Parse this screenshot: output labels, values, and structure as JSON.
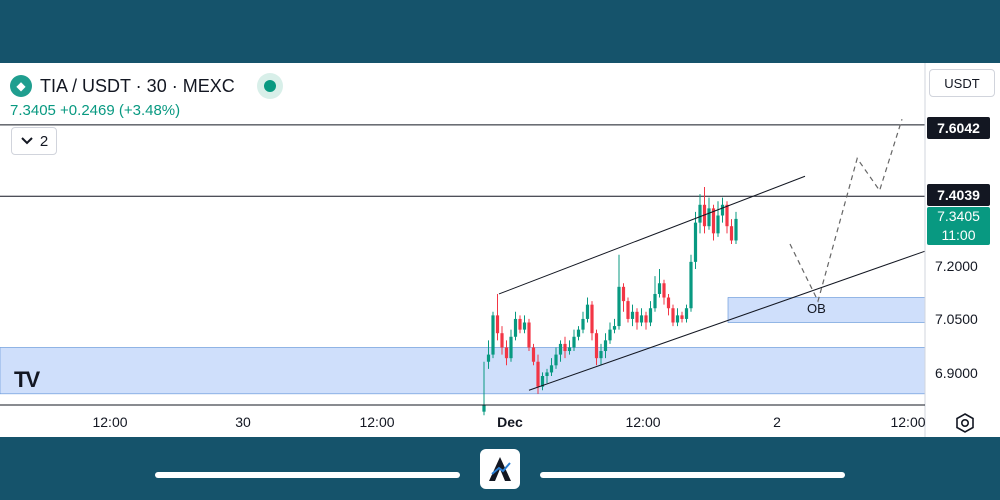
{
  "header": {
    "symbol_title": "TIA / USDT · 30 · MEXC",
    "price_change": "7.3405 +0.2469 (+3.48%)",
    "indicator_count": "2"
  },
  "currency_button": "USDT",
  "watermark": "TV",
  "annotation_label": "OB",
  "colors": {
    "up": "#089981",
    "down": "#f23645",
    "zone": "#cfdffb",
    "frame": "#15536b"
  },
  "price_tags": {
    "upper": "7.6042",
    "middle": "7.4039",
    "current_price": "7.3405",
    "countdown": "11:00"
  },
  "chart_data": {
    "type": "candlestick",
    "y_ticks": [
      7.2,
      7.05,
      6.9
    ],
    "y_tick_labels": [
      "7.2000",
      "7.0500",
      "6.9000"
    ],
    "x_tick_labels": [
      "12:00",
      "30",
      "12:00",
      "Dec",
      "12:00",
      "2",
      "12:00"
    ],
    "horizontal_levels": [
      7.6042,
      7.4039
    ],
    "current_price": 7.3405,
    "zones": [
      {
        "name": "lower-demand-zone",
        "from": 6.85,
        "to": 6.98
      },
      {
        "name": "OB",
        "from": 7.05,
        "to": 7.12
      }
    ],
    "channel": {
      "upper": [
        [
          0,
          7.13
        ],
        [
          47,
          7.46
        ]
      ],
      "lower": [
        [
          10,
          6.86
        ],
        [
          68,
          7.25
        ]
      ]
    },
    "projection": [
      [
        47,
        7.27
      ],
      [
        52,
        7.11
      ],
      [
        59,
        7.51
      ],
      [
        63,
        7.42
      ],
      [
        67,
        7.62
      ]
    ],
    "candles": [
      [
        6.8,
        6.82,
        6.79,
        6.94
      ],
      [
        6.94,
        6.96,
        6.92,
        7.0
      ],
      [
        6.96,
        7.07,
        6.95,
        7.08
      ],
      [
        7.07,
        7.02,
        7.0,
        7.13
      ],
      [
        7.02,
        6.98,
        6.96,
        7.04
      ],
      [
        6.98,
        6.95,
        6.93,
        7.0
      ],
      [
        6.95,
        7.01,
        6.94,
        7.03
      ],
      [
        7.01,
        7.06,
        7.0,
        7.08
      ],
      [
        7.06,
        7.03,
        7.02,
        7.07
      ],
      [
        7.03,
        7.05,
        7.02,
        7.07
      ],
      [
        7.05,
        6.98,
        6.97,
        7.06
      ],
      [
        6.98,
        6.94,
        6.93,
        6.99
      ],
      [
        6.94,
        6.87,
        6.85,
        6.96
      ],
      [
        6.87,
        6.9,
        6.86,
        6.91
      ],
      [
        6.9,
        6.91,
        6.88,
        6.92
      ],
      [
        6.91,
        6.93,
        6.9,
        6.95
      ],
      [
        6.93,
        6.96,
        6.92,
        6.98
      ],
      [
        6.96,
        6.99,
        6.94,
        7.0
      ],
      [
        6.99,
        6.97,
        6.95,
        7.01
      ],
      [
        6.97,
        6.98,
        6.96,
        7.0
      ],
      [
        6.98,
        7.01,
        6.97,
        7.03
      ],
      [
        7.01,
        7.03,
        7.0,
        7.04
      ],
      [
        7.03,
        7.06,
        7.02,
        7.08
      ],
      [
        7.06,
        7.1,
        7.05,
        7.12
      ],
      [
        7.1,
        7.02,
        7.0,
        7.11
      ],
      [
        7.02,
        6.95,
        6.93,
        7.03
      ],
      [
        6.95,
        6.97,
        6.93,
        6.99
      ],
      [
        6.97,
        7.0,
        6.95,
        7.02
      ],
      [
        7.0,
        7.03,
        6.99,
        7.05
      ],
      [
        7.03,
        7.04,
        7.02,
        7.06
      ],
      [
        7.04,
        7.15,
        7.03,
        7.24
      ],
      [
        7.15,
        7.11,
        7.08,
        7.16
      ],
      [
        7.11,
        7.06,
        7.05,
        7.12
      ],
      [
        7.06,
        7.08,
        7.04,
        7.1
      ],
      [
        7.08,
        7.05,
        7.03,
        7.09
      ],
      [
        7.05,
        7.07,
        7.04,
        7.09
      ],
      [
        7.07,
        7.05,
        7.03,
        7.08
      ],
      [
        7.05,
        7.09,
        7.04,
        7.11
      ],
      [
        7.09,
        7.13,
        7.08,
        7.18
      ],
      [
        7.13,
        7.16,
        7.12,
        7.2
      ],
      [
        7.16,
        7.12,
        7.1,
        7.17
      ],
      [
        7.12,
        7.09,
        7.07,
        7.13
      ],
      [
        7.09,
        7.05,
        7.04,
        7.1
      ],
      [
        7.05,
        7.07,
        7.04,
        7.09
      ],
      [
        7.07,
        7.06,
        7.05,
        7.08
      ],
      [
        7.06,
        7.09,
        7.05,
        7.1
      ],
      [
        7.09,
        7.22,
        7.08,
        7.24
      ],
      [
        7.22,
        7.33,
        7.2,
        7.36
      ],
      [
        7.33,
        7.38,
        7.3,
        7.41
      ],
      [
        7.38,
        7.32,
        7.3,
        7.43
      ],
      [
        7.32,
        7.37,
        7.31,
        7.4
      ],
      [
        7.37,
        7.3,
        7.28,
        7.38
      ],
      [
        7.3,
        7.35,
        7.29,
        7.39
      ],
      [
        7.35,
        7.38,
        7.33,
        7.4
      ],
      [
        7.38,
        7.32,
        7.3,
        7.39
      ],
      [
        7.32,
        7.28,
        7.27,
        7.34
      ],
      [
        7.28,
        7.3405,
        7.27,
        7.36
      ]
    ]
  }
}
